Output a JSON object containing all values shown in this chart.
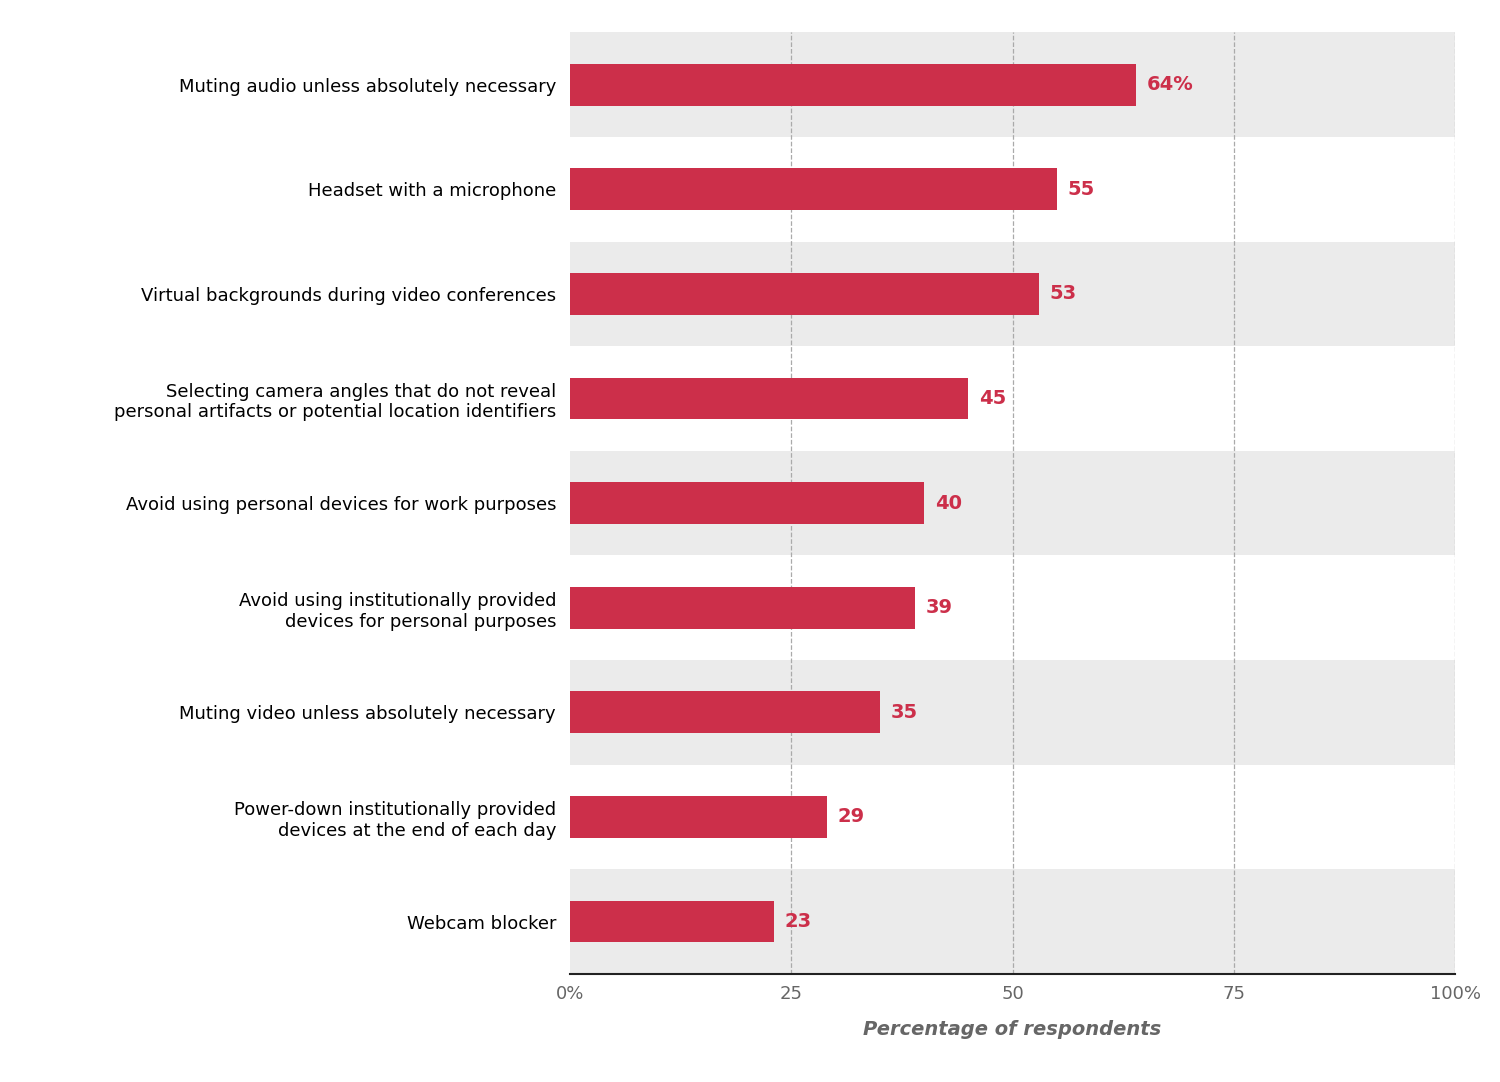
{
  "categories": [
    "Muting audio unless absolutely necessary",
    "Headset with a microphone",
    "Virtual backgrounds during video conferences",
    "Selecting camera angles that do not reveal\npersonal artifacts or potential location identifiers",
    "Avoid using personal devices for work purposes",
    "Avoid using institutionally provided\ndevices for personal purposes",
    "Muting video unless absolutely necessary",
    "Power-down institutionally provided\ndevices at the end of each day",
    "Webcam blocker"
  ],
  "values": [
    64,
    55,
    53,
    45,
    40,
    39,
    35,
    29,
    23
  ],
  "labels": [
    "64%",
    "55",
    "53",
    "45",
    "40",
    "39",
    "35",
    "29",
    "23"
  ],
  "bar_color": "#cc2f4a",
  "bg_colors": [
    "#ebebeb",
    "#ffffff",
    "#ebebeb",
    "#ffffff",
    "#ebebeb",
    "#ffffff",
    "#ebebeb",
    "#ffffff",
    "#ebebeb"
  ],
  "xlabel": "Percentage of respondents",
  "xlabel_fontsize": 14,
  "tick_label_fontsize": 13,
  "value_label_fontsize": 14,
  "category_fontsize": 13,
  "xlim": [
    0,
    100
  ],
  "xticks": [
    0,
    25,
    50,
    75,
    100
  ],
  "xtick_labels": [
    "0%",
    "25",
    "50",
    "75",
    "100%"
  ],
  "grid_color": "#aaaaaa",
  "bar_height": 0.4
}
